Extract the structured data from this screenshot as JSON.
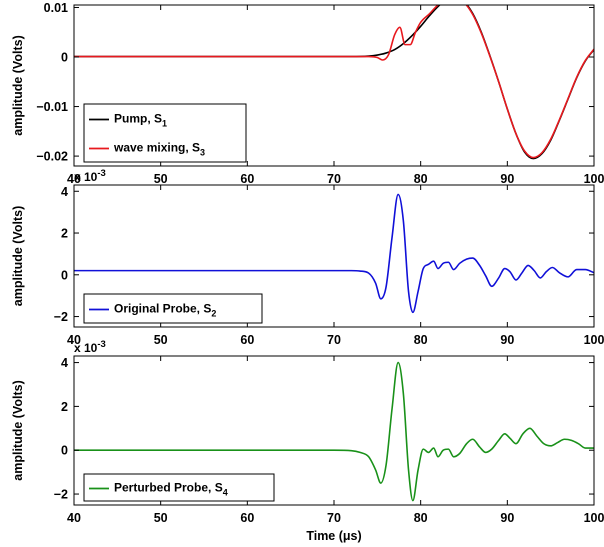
{
  "chart_data": [
    {
      "type": "line",
      "ylabel": "amplitude (Volts)",
      "xlim": [
        40,
        100
      ],
      "ylim": [
        -0.022,
        0.0105
      ],
      "x_ticks": [
        "40",
        "50",
        "60",
        "70",
        "80",
        "90",
        "100"
      ],
      "y_ticks": [
        "0.01",
        "0",
        "−0.01",
        "−0.02"
      ],
      "y_tick_values": [
        0.01,
        0,
        -0.01,
        -0.02
      ],
      "legend_position": "lower-left",
      "series": [
        {
          "name": "Pump, S",
          "subscript": "1",
          "color": "#000000",
          "x": [
            40,
            70,
            72,
            74,
            75,
            76,
            77,
            78,
            79,
            80,
            81,
            82,
            83,
            84,
            85,
            86,
            87,
            88,
            89,
            90,
            91,
            92,
            93,
            94,
            95,
            96,
            97,
            98,
            99,
            100
          ],
          "y": [
            0.0001,
            0.0001,
            0.0001,
            0.0002,
            0.0004,
            0.0008,
            0.0015,
            0.0027,
            0.0043,
            0.0062,
            0.0083,
            0.0102,
            0.0116,
            0.012,
            0.0112,
            0.0088,
            0.005,
            0.0002,
            -0.005,
            -0.0105,
            -0.0155,
            -0.0192,
            -0.0205,
            -0.0195,
            -0.0168,
            -0.0128,
            -0.0085,
            -0.0042,
            -0.0008,
            0.0015
          ]
        },
        {
          "name": "wave mixing, S",
          "subscript": "3",
          "color": "#e8191e",
          "x": [
            40,
            70,
            72,
            74,
            75,
            75.6,
            76.3,
            77,
            77.6,
            78.2,
            78.8,
            79.4,
            80,
            81,
            82,
            83,
            84,
            85,
            86,
            87,
            88,
            89,
            90,
            91,
            92,
            93,
            94,
            95,
            96,
            97,
            98,
            99,
            100
          ],
          "y": [
            0.0001,
            0.0001,
            0.0001,
            0.0001,
            -0.0001,
            -0.0006,
            0.0005,
            0.0045,
            0.006,
            0.0025,
            0.0025,
            0.005,
            0.007,
            0.0087,
            0.0105,
            0.0114,
            0.0117,
            0.011,
            0.0086,
            0.0048,
            0.0001,
            -0.005,
            -0.0105,
            -0.0155,
            -0.019,
            -0.0203,
            -0.0193,
            -0.0166,
            -0.0127,
            -0.0084,
            -0.0041,
            -0.0007,
            0.0016
          ]
        }
      ]
    },
    {
      "type": "line",
      "ylabel": "amplitude (Volts)",
      "y_exponent": "x 10",
      "y_exponent_power": "-3",
      "xlim": [
        40,
        100
      ],
      "ylim": [
        -2.5,
        4.3
      ],
      "x_ticks": [
        "40",
        "50",
        "60",
        "70",
        "80",
        "90",
        "100"
      ],
      "y_ticks": [
        "4",
        "2",
        "0",
        "−2"
      ],
      "y_tick_values": [
        4,
        2,
        0,
        -2
      ],
      "legend_position": "lower-left",
      "series": [
        {
          "name": "Original Probe, S",
          "subscript": "2",
          "color": "#1010d8",
          "x": [
            40,
            70,
            72,
            73,
            74,
            74.8,
            75.4,
            76,
            76.7,
            77.4,
            78,
            78.6,
            79.1,
            79.7,
            80.3,
            80.9,
            81.5,
            82,
            82.6,
            83.2,
            83.8,
            84.5,
            85.3,
            86,
            86.8,
            87.5,
            88.2,
            89,
            89.7,
            90.3,
            91,
            91.7,
            92.4,
            93.1,
            93.8,
            94.5,
            95.2,
            96,
            97,
            98,
            99,
            100
          ],
          "y": [
            0.2,
            0.2,
            0.2,
            0.18,
            0.08,
            -0.4,
            -1.15,
            -0.6,
            1.8,
            3.85,
            2.6,
            -0.8,
            -1.8,
            -0.8,
            0.3,
            0.5,
            0.65,
            0.3,
            0.55,
            0.6,
            0.25,
            0.55,
            0.75,
            0.8,
            0.45,
            -0.05,
            -0.55,
            -0.15,
            0.3,
            0.15,
            -0.25,
            0.1,
            0.45,
            0.2,
            -0.15,
            0.15,
            0.35,
            0.1,
            -0.1,
            0.25,
            0.25,
            0.1
          ]
        }
      ]
    },
    {
      "type": "line",
      "ylabel": "amplitude (Volts)",
      "xlabel": "Time (μs)",
      "y_exponent": "x 10",
      "y_exponent_power": "-3",
      "xlim": [
        40,
        100
      ],
      "ylim": [
        -2.5,
        4.3
      ],
      "x_ticks": [
        "40",
        "50",
        "60",
        "70",
        "80",
        "90",
        "100"
      ],
      "y_ticks": [
        "4",
        "2",
        "0",
        "−2"
      ],
      "y_tick_values": [
        4,
        2,
        0,
        -2
      ],
      "legend_position": "lower-left",
      "series": [
        {
          "name": "Perturbed Probe, S",
          "subscript": "4",
          "color": "#199119",
          "x": [
            40,
            70,
            72,
            73,
            74,
            74.8,
            75.4,
            76,
            76.7,
            77.4,
            78,
            78.6,
            79.1,
            79.7,
            80.3,
            80.9,
            81.5,
            82,
            82.6,
            83.2,
            83.8,
            84.5,
            85.3,
            86,
            86.8,
            87.5,
            88.2,
            89,
            89.7,
            90.3,
            91,
            91.8,
            92.6,
            93.4,
            94.2,
            95,
            95.8,
            96.6,
            97.4,
            98.2,
            99,
            100
          ],
          "y": [
            0,
            0,
            -0.02,
            -0.1,
            -0.3,
            -0.9,
            -1.5,
            -0.7,
            1.9,
            4.0,
            2.6,
            -0.9,
            -2.3,
            -0.9,
            0.05,
            -0.1,
            0.1,
            -0.3,
            0.0,
            0.05,
            -0.3,
            -0.15,
            0.3,
            0.5,
            0.15,
            -0.1,
            0.05,
            0.45,
            0.75,
            0.55,
            0.3,
            0.75,
            1.0,
            0.65,
            0.3,
            0.2,
            0.35,
            0.5,
            0.45,
            0.3,
            0.1,
            0.1
          ]
        }
      ]
    }
  ]
}
